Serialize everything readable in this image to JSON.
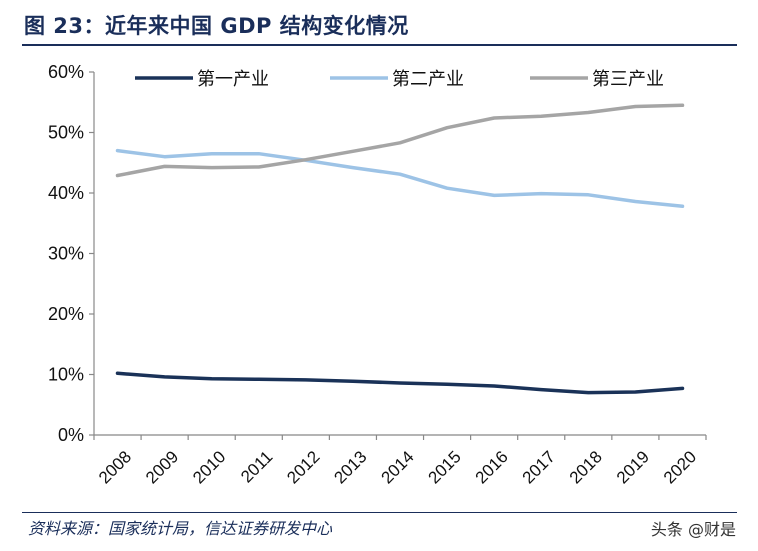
{
  "header": {
    "title": "图 23：近年来中国 GDP 结构变化情况"
  },
  "footer": {
    "source": "资料来源：国家统计局，信达证券研发中心",
    "watermark": "头条 @财是"
  },
  "colors": {
    "series1": "#1a3258",
    "series2": "#9dc3e6",
    "series3": "#a5a5a5",
    "title": "#1a2e5a"
  },
  "chart_data": {
    "type": "line",
    "title": "",
    "xlabel": "",
    "ylabel": "",
    "categories": [
      "2008",
      "2009",
      "2010",
      "2011",
      "2012",
      "2013",
      "2014",
      "2015",
      "2016",
      "2017",
      "2018",
      "2019",
      "2020"
    ],
    "ylim": [
      0,
      60
    ],
    "yticks": [
      0,
      10,
      20,
      30,
      40,
      50,
      60
    ],
    "ytick_labels": [
      "0%",
      "10%",
      "20%",
      "30%",
      "40%",
      "50%",
      "60%"
    ],
    "legend_position": "top",
    "grid": false,
    "series": [
      {
        "name": "第一产业",
        "values": [
          10.2,
          9.6,
          9.3,
          9.2,
          9.1,
          8.9,
          8.6,
          8.4,
          8.1,
          7.5,
          7.0,
          7.1,
          7.7
        ]
      },
      {
        "name": "第二产业",
        "values": [
          47.0,
          46.0,
          46.5,
          46.5,
          45.4,
          44.2,
          43.1,
          40.8,
          39.6,
          39.9,
          39.7,
          38.6,
          37.8
        ]
      },
      {
        "name": "第三产业",
        "values": [
          42.9,
          44.4,
          44.2,
          44.3,
          45.5,
          46.9,
          48.3,
          50.8,
          52.4,
          52.7,
          53.3,
          54.3,
          54.5
        ]
      }
    ]
  }
}
